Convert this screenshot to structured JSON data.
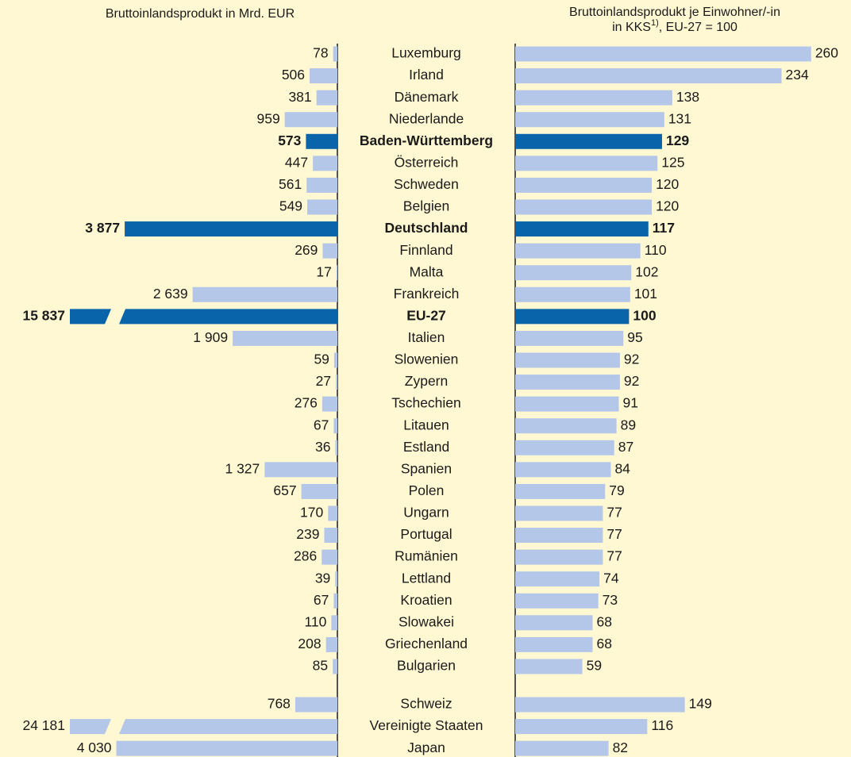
{
  "chart_data": {
    "type": "butterfly",
    "categories": [
      "Luxemburg",
      "Irland",
      "Dänemark",
      "Niederlande",
      "Baden-Württemberg",
      "Österreich",
      "Schweden",
      "Belgien",
      "Deutschland",
      "Finnland",
      "Malta",
      "Frankreich",
      "EU-27",
      "Italien",
      "Slowenien",
      "Zypern",
      "Tschechien",
      "Litauen",
      "Estland",
      "Spanien",
      "Polen",
      "Ungarn",
      "Portugal",
      "Rumänien",
      "Lettland",
      "Kroatien",
      "Slowakei",
      "Griechenland",
      "Bulgarien",
      "Schweiz",
      "Vereinigte Staaten",
      "Japan"
    ],
    "highlight": [
      4,
      8,
      12
    ],
    "highlight_color": "#0a64aa",
    "series": [
      {
        "name": "Bruttoinlandsprodukt in Mrd. EUR",
        "color": "#b4c7e8",
        "xlim": [
          0,
          6150
        ],
        "axis_break": true,
        "values": [
          78,
          506,
          381,
          959,
          573,
          447,
          561,
          549,
          3877,
          269,
          17,
          2639,
          15837,
          1909,
          59,
          27,
          276,
          67,
          36,
          1327,
          657,
          170,
          239,
          286,
          39,
          67,
          110,
          208,
          85,
          768,
          24181,
          4030
        ],
        "value_labels": [
          "78",
          "506",
          "381",
          "959",
          "573",
          "447",
          "561",
          "549",
          "3 877",
          "269",
          "17",
          "2 639",
          "15 837",
          "1 909",
          "59",
          "27",
          "276",
          "67",
          "36",
          "1 327",
          "657",
          "170",
          "239",
          "286",
          "39",
          "67",
          "110",
          "208",
          "85",
          "768",
          "24 181",
          "4 030"
        ]
      },
      {
        "name": "Bruttoinlandsprodukt je Einwohner/-in",
        "name_line2": "in KKS",
        "name_sup": "1)",
        "name_rest": ", EU-27 = 100",
        "color": "#b4c7e8",
        "xlim": [
          0,
          295
        ],
        "values": [
          260,
          234,
          138,
          131,
          129,
          125,
          120,
          120,
          117,
          110,
          102,
          101,
          100,
          95,
          92,
          92,
          91,
          89,
          87,
          84,
          79,
          77,
          77,
          77,
          74,
          73,
          68,
          68,
          59,
          149,
          116,
          82
        ]
      }
    ]
  }
}
